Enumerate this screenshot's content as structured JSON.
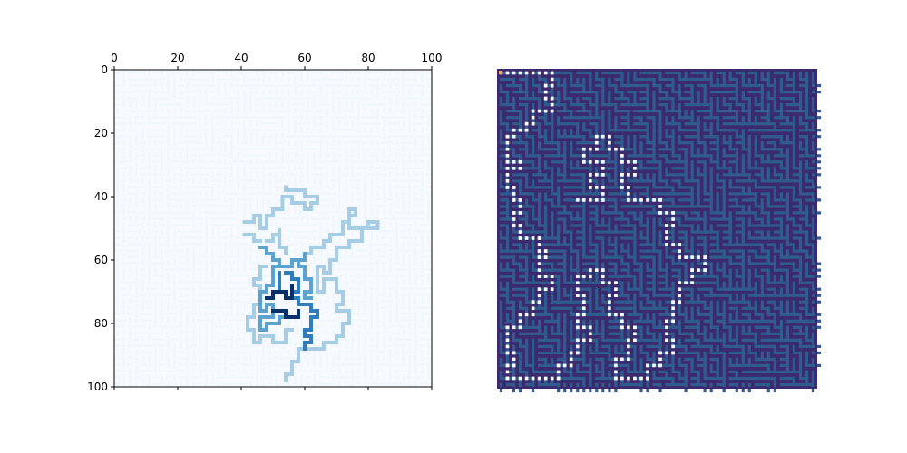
{
  "chart_data": [
    {
      "type": "heatmap",
      "title": "",
      "xlabel": "",
      "ylabel": "",
      "xlim": [
        0,
        100
      ],
      "ylim": [
        100,
        0
      ],
      "x_ticks": [
        "0",
        "20",
        "40",
        "60",
        "80",
        "100"
      ],
      "y_ticks": [
        "0",
        "20",
        "40",
        "60",
        "80",
        "100"
      ],
      "x_axis_position": "top",
      "colormap": "Blues",
      "colors": [
        "#f0f6fc",
        "#a6cde3",
        "#5ba2cf",
        "#2f7dbb",
        "#08306b"
      ],
      "levels": [
        {
          "level": "background maze corridors",
          "color": "#f0f6fc"
        },
        {
          "level": "outer explored region",
          "color": "#a6cde3"
        },
        {
          "level": "middle explored region",
          "color": "#5ba2cf"
        },
        {
          "level": "inner explored region",
          "color": "#2f7dbb"
        },
        {
          "level": "core explored region",
          "color": "#08306b"
        }
      ]
    },
    {
      "type": "heatmap",
      "title": "",
      "xlabel": "",
      "ylabel": "",
      "axes_visible": false,
      "colormap": "viridis",
      "colors": [
        "#3b2a6e",
        "#2f5b8e",
        "#ffffff",
        "#f4a15c"
      ],
      "levels": [
        {
          "level": "wall",
          "color": "#3b2a6e"
        },
        {
          "level": "corridor",
          "color": "#2f5b8e"
        },
        {
          "level": "path",
          "color": "#ffffff"
        },
        {
          "level": "start",
          "color": "#f4a15c"
        }
      ]
    }
  ]
}
